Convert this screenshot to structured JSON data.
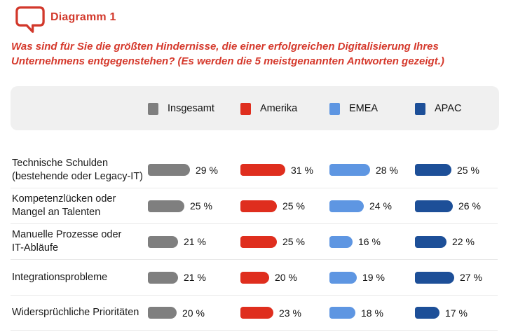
{
  "header": {
    "title": "Diagramm 1",
    "icon": "speech-bubble-icon"
  },
  "question": {
    "text": "Was sind für Sie die größten Hindernisse, die einer erfolgreichen Digitalisierung Ihres Unternehmens entgegenstehen? (Es werden die 5 meistgenannten Antworten gezeigt.)"
  },
  "colors": {
    "accent_red_text": "#d5392c",
    "legend_band_bg": "#f0f0f0",
    "separator": "#e9e9e9",
    "label_text": "#1a1a1a"
  },
  "chart_data": {
    "type": "bar",
    "orientation": "horizontal",
    "title": "Diagramm 1",
    "legend_position": "top-band",
    "grid": false,
    "xlim": [
      0,
      35
    ],
    "value_suffix": " %",
    "categories": [
      "Technische Schulden (bestehende oder Legacy-IT)",
      "Kompetenzlücken oder Mangel an Talenten",
      "Manuelle Prozesse oder IT-Abläufe",
      "Integrationsprobleme",
      "Widersprüchliche Prioritäten"
    ],
    "category_lines": [
      [
        "Technische Schulden",
        "(bestehende oder Legacy-IT)"
      ],
      [
        "Kompetenzlücken oder",
        "Mangel an Talenten"
      ],
      [
        "Manuelle Prozesse oder",
        "IT-Abläufe"
      ],
      [
        "Integrationsprobleme"
      ],
      [
        "Widersprüchliche Prioritäten"
      ]
    ],
    "series": [
      {
        "name": "Insgesamt",
        "color": "#7f7f7f",
        "values": [
          29,
          25,
          21,
          21,
          20
        ]
      },
      {
        "name": "Amerika",
        "color": "#df2e1e",
        "values": [
          31,
          25,
          25,
          20,
          23
        ]
      },
      {
        "name": "EMEA",
        "color": "#5e96e2",
        "values": [
          28,
          24,
          16,
          19,
          18
        ]
      },
      {
        "name": "APAC",
        "color": "#1d4f98",
        "values": [
          25,
          26,
          22,
          27,
          17
        ]
      }
    ]
  }
}
